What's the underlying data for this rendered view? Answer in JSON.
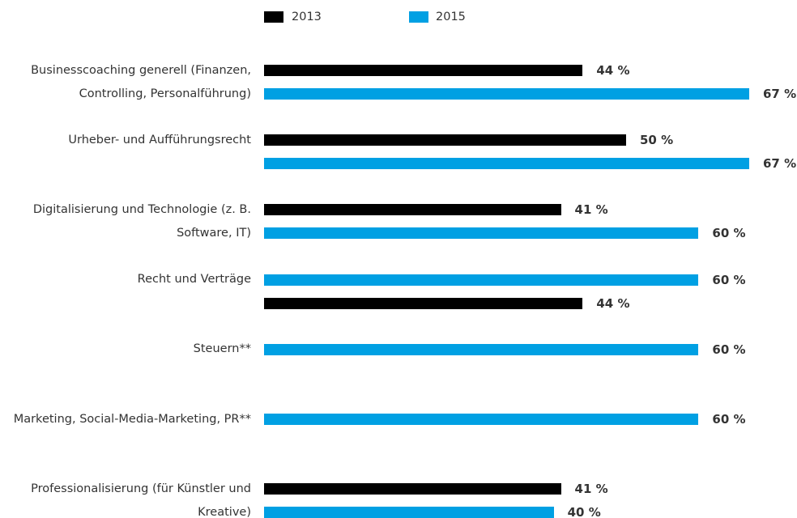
{
  "chart_data": {
    "type": "bar",
    "orientation": "horizontal",
    "categories": [
      "Businesscoaching generell (Finanzen, Controlling, Personalführung)",
      "Urheber- und Aufführungsrecht",
      "Digitalisierung und Technologie (z. B. Software, IT)",
      "Recht und Verträge",
      "Steuern**",
      "Marketing, Social-Media-Marketing, PR**",
      "Professionalisierung (für Künstler und Kreative)"
    ],
    "series": [
      {
        "name": "2013",
        "color": "#000000",
        "values": [
          44,
          50,
          41,
          44,
          null,
          null,
          41
        ],
        "value_labels": [
          "44 %",
          "50 %",
          "41 %",
          "44 %",
          null,
          null,
          "41 %"
        ]
      },
      {
        "name": "2015",
        "color": "#00a0e3",
        "values": [
          67,
          67,
          60,
          60,
          60,
          60,
          40
        ],
        "value_labels": [
          "67 %",
          "67 %",
          "60 %",
          "60 %",
          "60 %",
          "60 %",
          "40 %"
        ]
      }
    ],
    "legend": "top"
  }
}
